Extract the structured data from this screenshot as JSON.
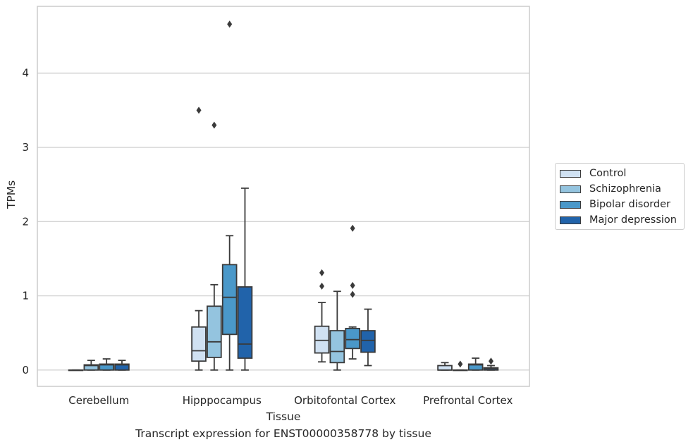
{
  "caption": "Transcript expression for ENST00000358778 by tissue",
  "chart_data": {
    "type": "boxplot",
    "title": "",
    "xlabel": "Tissue",
    "ylabel": "TPMs",
    "ylim": [
      -0.22,
      4.9
    ],
    "yticks": [
      0,
      1,
      2,
      3,
      4
    ],
    "grid": "horizontal",
    "legend_position": "right",
    "categories": [
      "Cerebellum",
      "Hipppocampus",
      "Orbitofontal Cortex",
      "Prefrontal Cortex"
    ],
    "series": [
      {
        "name": "Control",
        "color": "#d0e1f2",
        "boxes": [
          {
            "whislo": 0.0,
            "q1": 0.0,
            "med": 0.0,
            "q3": 0.0,
            "whishi": 0.0,
            "fliers": []
          },
          {
            "whislo": 0.0,
            "q1": 0.12,
            "med": 0.26,
            "q3": 0.58,
            "whishi": 0.8,
            "fliers": [
              3.5
            ]
          },
          {
            "whislo": 0.11,
            "q1": 0.23,
            "med": 0.4,
            "q3": 0.59,
            "whishi": 0.91,
            "fliers": [
              1.13,
              1.31
            ]
          },
          {
            "whislo": 0.0,
            "q1": 0.0,
            "med": 0.0,
            "q3": 0.06,
            "whishi": 0.1,
            "fliers": []
          }
        ]
      },
      {
        "name": "Schizophrenia",
        "color": "#94c4df",
        "boxes": [
          {
            "whislo": 0.0,
            "q1": 0.0,
            "med": 0.06,
            "q3": 0.07,
            "whishi": 0.13,
            "fliers": []
          },
          {
            "whislo": 0.0,
            "q1": 0.17,
            "med": 0.38,
            "q3": 0.86,
            "whishi": 1.15,
            "fliers": [
              3.3
            ]
          },
          {
            "whislo": 0.0,
            "q1": 0.1,
            "med": 0.25,
            "q3": 0.53,
            "whishi": 1.06,
            "fliers": []
          },
          {
            "whislo": 0.0,
            "q1": 0.0,
            "med": 0.0,
            "q3": 0.0,
            "whishi": 0.0,
            "fliers": [
              0.08
            ]
          }
        ]
      },
      {
        "name": "Bipolar disorder",
        "color": "#4a98c9",
        "boxes": [
          {
            "whislo": 0.0,
            "q1": 0.0,
            "med": 0.07,
            "q3": 0.08,
            "whishi": 0.15,
            "fliers": []
          },
          {
            "whislo": 0.0,
            "q1": 0.48,
            "med": 0.98,
            "q3": 1.42,
            "whishi": 1.81,
            "fliers": [
              4.66
            ]
          },
          {
            "whislo": 0.15,
            "q1": 0.29,
            "med": 0.41,
            "q3": 0.56,
            "whishi": 0.58,
            "fliers": [
              1.02,
              1.14,
              1.91
            ]
          },
          {
            "whislo": 0.0,
            "q1": 0.0,
            "med": 0.07,
            "q3": 0.08,
            "whishi": 0.16,
            "fliers": []
          }
        ]
      },
      {
        "name": "Major depression",
        "color": "#2163aa",
        "boxes": [
          {
            "whislo": 0.0,
            "q1": 0.0,
            "med": 0.07,
            "q3": 0.08,
            "whishi": 0.13,
            "fliers": []
          },
          {
            "whislo": 0.0,
            "q1": 0.16,
            "med": 0.35,
            "q3": 1.12,
            "whishi": 2.45,
            "fliers": []
          },
          {
            "whislo": 0.06,
            "q1": 0.24,
            "med": 0.4,
            "q3": 0.53,
            "whishi": 0.82,
            "fliers": []
          },
          {
            "whislo": 0.0,
            "q1": 0.0,
            "med": 0.02,
            "q3": 0.03,
            "whishi": 0.06,
            "fliers": [
              0.12
            ]
          }
        ]
      }
    ]
  }
}
